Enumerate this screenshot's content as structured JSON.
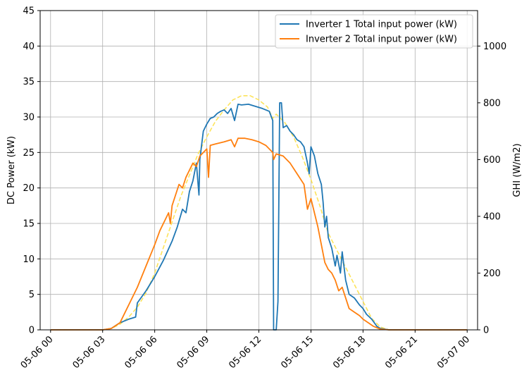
{
  "chart_data": {
    "type": "line",
    "title": "",
    "xlabel": "",
    "ylabel": "DC Power (kW)",
    "y2label": "GHI (W/m2)",
    "x_ticks": [
      "05-06 00",
      "05-06 03",
      "05-06 06",
      "05-06 09",
      "05-06 12",
      "05-06 15",
      "05-06 18",
      "05-06 21",
      "05-07 00"
    ],
    "xlim_hours": [
      -0.6,
      24.6
    ],
    "ylim": [
      0,
      45
    ],
    "y_ticks": [
      0,
      5,
      10,
      15,
      20,
      25,
      30,
      35,
      40,
      45
    ],
    "y2lim": [
      0,
      1125
    ],
    "y2_ticks": [
      0,
      200,
      400,
      600,
      800,
      1000
    ],
    "grid": true,
    "legend_position": "upper right",
    "series": [
      {
        "name": "Inverter 1 Total input power (kW)",
        "axis": "left",
        "color": "#1f77b4",
        "style": "solid",
        "points": [
          [
            0,
            0
          ],
          [
            3,
            0
          ],
          [
            3.5,
            0.2
          ],
          [
            4,
            1
          ],
          [
            4.5,
            1.5
          ],
          [
            4.9,
            1.8
          ],
          [
            5.0,
            3.8
          ],
          [
            5.5,
            5.5
          ],
          [
            6,
            7.5
          ],
          [
            6.5,
            9.8
          ],
          [
            7,
            12.5
          ],
          [
            7.3,
            14.5
          ],
          [
            7.6,
            17.0
          ],
          [
            7.8,
            16.5
          ],
          [
            8,
            19.5
          ],
          [
            8.2,
            21.0
          ],
          [
            8.4,
            23.5
          ],
          [
            8.55,
            19.0
          ],
          [
            8.6,
            24.0
          ],
          [
            8.8,
            28.0
          ],
          [
            9,
            29.0
          ],
          [
            9.2,
            29.8
          ],
          [
            9.4,
            30.0
          ],
          [
            9.6,
            30.5
          ],
          [
            9.8,
            30.8
          ],
          [
            10,
            31.0
          ],
          [
            10.2,
            30.5
          ],
          [
            10.4,
            31.2
          ],
          [
            10.6,
            29.5
          ],
          [
            10.8,
            31.8
          ],
          [
            11,
            31.7
          ],
          [
            11.4,
            31.8
          ],
          [
            11.8,
            31.5
          ],
          [
            12.2,
            31.2
          ],
          [
            12.6,
            30.8
          ],
          [
            12.8,
            29.5
          ],
          [
            12.85,
            0
          ],
          [
            13.0,
            0
          ],
          [
            13.1,
            4.0
          ],
          [
            13.2,
            32.0
          ],
          [
            13.3,
            32.0
          ],
          [
            13.4,
            28.5
          ],
          [
            13.6,
            28.8
          ],
          [
            13.8,
            28.0
          ],
          [
            14.0,
            27.5
          ],
          [
            14.2,
            26.8
          ],
          [
            14.4,
            26.5
          ],
          [
            14.6,
            25.8
          ],
          [
            14.8,
            23.5
          ],
          [
            14.9,
            22.0
          ],
          [
            15.0,
            25.8
          ],
          [
            15.2,
            24.5
          ],
          [
            15.4,
            22.0
          ],
          [
            15.6,
            20.5
          ],
          [
            15.7,
            18.0
          ],
          [
            15.8,
            14.5
          ],
          [
            15.9,
            16.0
          ],
          [
            16,
            13.0
          ],
          [
            16.2,
            11.5
          ],
          [
            16.4,
            9.0
          ],
          [
            16.5,
            10.5
          ],
          [
            16.7,
            8.0
          ],
          [
            16.8,
            11.0
          ],
          [
            17,
            7.0
          ],
          [
            17.2,
            5.0
          ],
          [
            17.5,
            4.5
          ],
          [
            17.8,
            3.5
          ],
          [
            18,
            3.0
          ],
          [
            18.2,
            2.2
          ],
          [
            18.5,
            1.5
          ],
          [
            18.8,
            0.5
          ],
          [
            19,
            0.2
          ],
          [
            19.5,
            0
          ],
          [
            21,
            0
          ],
          [
            24,
            0
          ]
        ]
      },
      {
        "name": "Inverter 2 Total input power (kW)",
        "axis": "left",
        "color": "#ff7f0e",
        "style": "solid",
        "points": [
          [
            0,
            0
          ],
          [
            3,
            0
          ],
          [
            3.5,
            0.2
          ],
          [
            4,
            1
          ],
          [
            4.3,
            2.5
          ],
          [
            4.6,
            4.0
          ],
          [
            5,
            6
          ],
          [
            5.5,
            9
          ],
          [
            6,
            12
          ],
          [
            6.3,
            14.0
          ],
          [
            6.6,
            15.5
          ],
          [
            6.8,
            16.5
          ],
          [
            6.9,
            15.0
          ],
          [
            7.0,
            17.5
          ],
          [
            7.2,
            19.0
          ],
          [
            7.4,
            20.5
          ],
          [
            7.6,
            20.0
          ],
          [
            7.8,
            21.5
          ],
          [
            8.0,
            22.5
          ],
          [
            8.2,
            23.5
          ],
          [
            8.4,
            23.0
          ],
          [
            8.6,
            24.5
          ],
          [
            8.8,
            25.0
          ],
          [
            9,
            25.5
          ],
          [
            9.1,
            21.5
          ],
          [
            9.2,
            26.0
          ],
          [
            9.5,
            26.2
          ],
          [
            10,
            26.5
          ],
          [
            10.4,
            26.8
          ],
          [
            10.6,
            25.8
          ],
          [
            10.8,
            27.0
          ],
          [
            11.2,
            27.0
          ],
          [
            11.6,
            26.8
          ],
          [
            12,
            26.5
          ],
          [
            12.4,
            26.0
          ],
          [
            12.8,
            25.0
          ],
          [
            12.85,
            24.0
          ],
          [
            13,
            24.8
          ],
          [
            13.4,
            24.5
          ],
          [
            13.8,
            23.5
          ],
          [
            14.2,
            22.0
          ],
          [
            14.6,
            20.5
          ],
          [
            14.8,
            17.0
          ],
          [
            15,
            18.5
          ],
          [
            15.2,
            16.5
          ],
          [
            15.4,
            14.5
          ],
          [
            15.6,
            12.0
          ],
          [
            15.8,
            9.5
          ],
          [
            16,
            8.5
          ],
          [
            16.2,
            8.0
          ],
          [
            16.4,
            7.0
          ],
          [
            16.6,
            5.5
          ],
          [
            16.8,
            6.0
          ],
          [
            17,
            4.5
          ],
          [
            17.2,
            3.0
          ],
          [
            17.5,
            2.5
          ],
          [
            17.8,
            2.0
          ],
          [
            18,
            1.5
          ],
          [
            18.3,
            1.0
          ],
          [
            18.6,
            0.5
          ],
          [
            19,
            0.1
          ],
          [
            19.5,
            0
          ],
          [
            21,
            0
          ],
          [
            24,
            0
          ]
        ]
      },
      {
        "name": "",
        "axis": "right",
        "color": "#fde35a",
        "style": "dashed",
        "points": [
          [
            0,
            0
          ],
          [
            3,
            0
          ],
          [
            3.5,
            5
          ],
          [
            4,
            20
          ],
          [
            4.5,
            45
          ],
          [
            5,
            80
          ],
          [
            5.5,
            130
          ],
          [
            6,
            200
          ],
          [
            6.5,
            290
          ],
          [
            7,
            380
          ],
          [
            7.5,
            470
          ],
          [
            8,
            545
          ],
          [
            8.5,
            620
          ],
          [
            9,
            680
          ],
          [
            9.5,
            735
          ],
          [
            10,
            775
          ],
          [
            10.5,
            810
          ],
          [
            11,
            825
          ],
          [
            11.5,
            825
          ],
          [
            12,
            810
          ],
          [
            12.5,
            785
          ],
          [
            12.8,
            745
          ],
          [
            13,
            760
          ],
          [
            13.5,
            730
          ],
          [
            14,
            680
          ],
          [
            14.5,
            610
          ],
          [
            15,
            530
          ],
          [
            15.5,
            440
          ],
          [
            16,
            340
          ],
          [
            16.5,
            280
          ],
          [
            17,
            220
          ],
          [
            17.5,
            160
          ],
          [
            18,
            100
          ],
          [
            18.5,
            40
          ],
          [
            19,
            10
          ],
          [
            19.5,
            0
          ],
          [
            21,
            0
          ],
          [
            24,
            0
          ]
        ]
      }
    ]
  }
}
